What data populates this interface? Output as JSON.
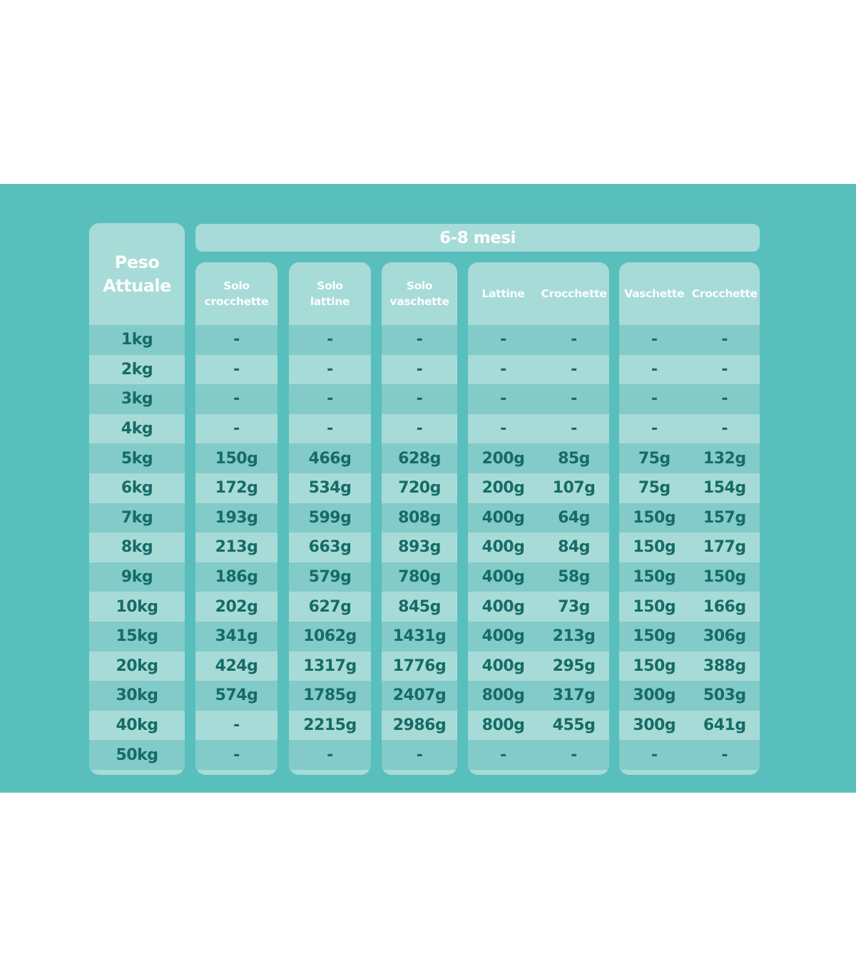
{
  "colors": {
    "background_teal": "#58bfbc",
    "card_light": "#a7dbd8",
    "row_band_dark": "#82cbc8",
    "text_dark_teal": "#166b66",
    "text_white": "#fbfdfd"
  },
  "chart_data": {
    "type": "table",
    "group_header": "6-8 mesi",
    "row_axis_title": "Peso\nAttuale",
    "weights": [
      "1kg",
      "2kg",
      "3kg",
      "4kg",
      "5kg",
      "6kg",
      "7kg",
      "8kg",
      "9kg",
      "10kg",
      "15kg",
      "20kg",
      "30kg",
      "40kg",
      "50kg"
    ],
    "columns": [
      {
        "id": "solo-crocchette",
        "headers": [
          "Solo\ncrocchette"
        ],
        "rows": [
          [
            "-"
          ],
          [
            "-"
          ],
          [
            "-"
          ],
          [
            "-"
          ],
          [
            "150g"
          ],
          [
            "172g"
          ],
          [
            "193g"
          ],
          [
            "213g"
          ],
          [
            "186g"
          ],
          [
            "202g"
          ],
          [
            "341g"
          ],
          [
            "424g"
          ],
          [
            "574g"
          ],
          [
            "-"
          ],
          [
            "-"
          ]
        ]
      },
      {
        "id": "solo-lattine",
        "headers": [
          "Solo\nlattine"
        ],
        "rows": [
          [
            "-"
          ],
          [
            "-"
          ],
          [
            "-"
          ],
          [
            "-"
          ],
          [
            "466g"
          ],
          [
            "534g"
          ],
          [
            "599g"
          ],
          [
            "663g"
          ],
          [
            "579g"
          ],
          [
            "627g"
          ],
          [
            "1062g"
          ],
          [
            "1317g"
          ],
          [
            "1785g"
          ],
          [
            "2215g"
          ],
          [
            "-"
          ]
        ]
      },
      {
        "id": "solo-vaschette",
        "headers": [
          "Solo\nvaschette"
        ],
        "rows": [
          [
            "-"
          ],
          [
            "-"
          ],
          [
            "-"
          ],
          [
            "-"
          ],
          [
            "628g"
          ],
          [
            "720g"
          ],
          [
            "808g"
          ],
          [
            "893g"
          ],
          [
            "780g"
          ],
          [
            "845g"
          ],
          [
            "1431g"
          ],
          [
            "1776g"
          ],
          [
            "2407g"
          ],
          [
            "2986g"
          ],
          [
            "-"
          ]
        ]
      },
      {
        "id": "lattine-crocchette",
        "headers": [
          "Lattine",
          "Crocchette"
        ],
        "rows": [
          [
            "-",
            "-"
          ],
          [
            "-",
            "-"
          ],
          [
            "-",
            "-"
          ],
          [
            "-",
            "-"
          ],
          [
            "200g",
            "85g"
          ],
          [
            "200g",
            "107g"
          ],
          [
            "400g",
            "64g"
          ],
          [
            "400g",
            "84g"
          ],
          [
            "400g",
            "58g"
          ],
          [
            "400g",
            "73g"
          ],
          [
            "400g",
            "213g"
          ],
          [
            "400g",
            "295g"
          ],
          [
            "800g",
            "317g"
          ],
          [
            "800g",
            "455g"
          ],
          [
            "-",
            "-"
          ]
        ]
      },
      {
        "id": "vaschette-crocchette",
        "headers": [
          "Vaschette",
          "Crocchette"
        ],
        "rows": [
          [
            "-",
            "-"
          ],
          [
            "-",
            "-"
          ],
          [
            "-",
            "-"
          ],
          [
            "-",
            "-"
          ],
          [
            "75g",
            "132g"
          ],
          [
            "75g",
            "154g"
          ],
          [
            "150g",
            "157g"
          ],
          [
            "150g",
            "177g"
          ],
          [
            "150g",
            "150g"
          ],
          [
            "150g",
            "166g"
          ],
          [
            "150g",
            "306g"
          ],
          [
            "150g",
            "388g"
          ],
          [
            "300g",
            "503g"
          ],
          [
            "300g",
            "641g"
          ],
          [
            "-",
            "-"
          ]
        ]
      }
    ]
  }
}
